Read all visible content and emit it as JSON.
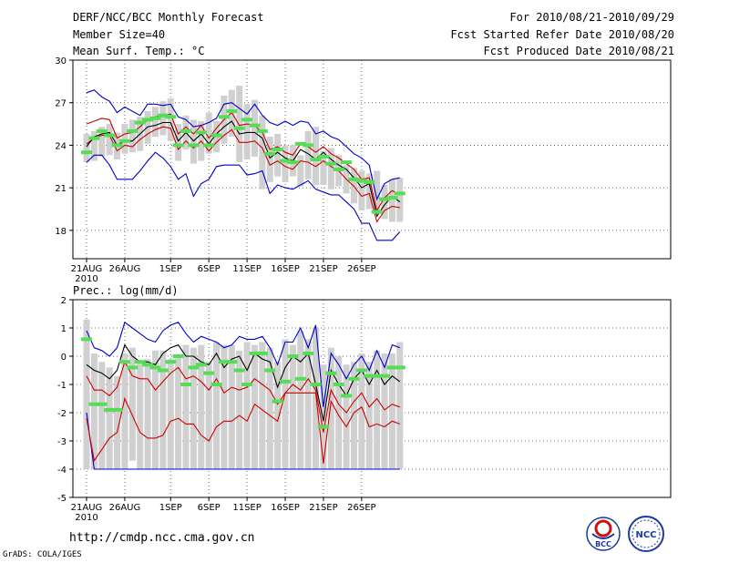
{
  "header": {
    "title": "DERF/NCC/BCC Monthly Forecast",
    "member_size": "Member Size=40",
    "variable": "Mean Surf. Temp.: °C",
    "period": "For 2010/08/21-2010/09/29",
    "started": "Fcst Started Refer Date 2010/08/20",
    "produced": "Fcst Produced Date 2010/08/21"
  },
  "footer": {
    "url": "http://cmdp.ncc.cma.gov.cn",
    "grads": "GrADS: COLA/IGES",
    "logo_bcc": "BCC",
    "logo_ncc": "NCC"
  },
  "colors": {
    "box": "#d0d0d0",
    "green": "#55dd55",
    "blue": "#0000cc",
    "red": "#cc0000",
    "black": "#000000",
    "grid": "#444444"
  },
  "chart_data": [
    {
      "type": "box",
      "title": "Mean Surf. Temp.: °C",
      "ylabel": "°C",
      "ylim": [
        16,
        30
      ],
      "yticks": [
        18,
        21,
        24,
        27,
        30
      ],
      "x_ticks": [
        {
          "day": 0,
          "label": "21AUG",
          "sub": "2010"
        },
        {
          "day": 5,
          "label": "26AUG"
        },
        {
          "day": 11,
          "label": "1SEP"
        },
        {
          "day": 16,
          "label": "6SEP"
        },
        {
          "day": 21,
          "label": "11SEP"
        },
        {
          "day": 26,
          "label": "16SEP"
        },
        {
          "day": 31,
          "label": "21SEP"
        },
        {
          "day": 36,
          "label": "26SEP"
        }
      ],
      "series": {
        "box_low": [
          22.8,
          22.9,
          23.2,
          23.3,
          23.0,
          23.4,
          23.5,
          23.6,
          24.1,
          24.6,
          24.7,
          24.3,
          22.9,
          23.7,
          22.7,
          22.9,
          23.4,
          23.5,
          24.1,
          24.6,
          22.8,
          23.0,
          23.2,
          20.9,
          21.4,
          21.8,
          21.4,
          21.8,
          21.1,
          21.6,
          21.2,
          21.2,
          20.9,
          21.1,
          20.6,
          19.9,
          19.4,
          19.5,
          19.3,
          18.8,
          18.6,
          18.6
        ],
        "box_high": [
          24.8,
          25.0,
          25.3,
          25.5,
          24.9,
          25.5,
          25.8,
          26.0,
          26.4,
          26.7,
          27.1,
          27.3,
          25.5,
          26.1,
          25.8,
          25.7,
          26.3,
          25.7,
          27.5,
          27.9,
          28.2,
          26.9,
          27.2,
          26.1,
          24.6,
          24.8,
          24.0,
          24.0,
          23.3,
          25.0,
          25.3,
          23.6,
          23.8,
          23.3,
          22.6,
          22.4,
          22.2,
          22.0,
          22.2,
          21.2,
          21.6,
          21.7
        ],
        "green": [
          23.5,
          24.5,
          25.0,
          24.7,
          24.0,
          24.3,
          25.0,
          25.6,
          25.8,
          25.9,
          26.1,
          26.0,
          24.0,
          25.0,
          24.0,
          24.9,
          24.0,
          24.7,
          26.0,
          26.4,
          25.2,
          25.8,
          25.4,
          25.0,
          23.4,
          23.7,
          22.9,
          22.8,
          24.1,
          24.0,
          23.0,
          23.2,
          22.7,
          22.3,
          22.8,
          21.6,
          21.5,
          21.4,
          19.3,
          20.2,
          20.3,
          20.6
        ],
        "mean": [
          23.9,
          24.6,
          24.8,
          24.9,
          24.0,
          24.3,
          24.3,
          24.8,
          25.3,
          25.4,
          25.6,
          25.6,
          24.3,
          24.9,
          24.3,
          24.8,
          24.1,
          24.8,
          25.3,
          25.7,
          24.8,
          24.9,
          24.9,
          24.5,
          23.1,
          23.5,
          23.1,
          22.9,
          23.7,
          23.4,
          23.0,
          23.5,
          23.0,
          22.6,
          22.3,
          21.7,
          21.0,
          21.3,
          19.0,
          19.8,
          20.4,
          20.0
        ],
        "red_upper": [
          25.5,
          25.7,
          25.9,
          25.8,
          24.5,
          24.8,
          24.9,
          25.3,
          25.8,
          26.0,
          26.1,
          26.2,
          24.8,
          25.3,
          24.8,
          25.4,
          24.5,
          25.2,
          25.8,
          26.3,
          25.4,
          25.5,
          25.4,
          24.9,
          23.7,
          23.9,
          23.5,
          23.3,
          24.1,
          23.9,
          23.5,
          23.9,
          23.4,
          23.1,
          22.7,
          22.3,
          21.6,
          21.7,
          19.4,
          20.3,
          20.8,
          20.5
        ],
        "red_lower": [
          24.1,
          24.5,
          24.7,
          24.7,
          23.6,
          24.0,
          23.9,
          24.4,
          24.8,
          25.1,
          25.3,
          25.2,
          23.7,
          24.3,
          23.8,
          24.3,
          23.6,
          24.2,
          24.7,
          25.1,
          24.2,
          24.2,
          24.3,
          23.8,
          22.6,
          22.9,
          22.5,
          22.3,
          22.9,
          22.8,
          22.5,
          22.9,
          22.5,
          22.2,
          21.6,
          21.1,
          20.4,
          20.6,
          18.6,
          19.4,
          19.7,
          19.6
        ],
        "blue_upper": [
          27.7,
          27.9,
          27.4,
          27.1,
          26.3,
          26.7,
          26.4,
          26.1,
          26.9,
          26.9,
          26.8,
          26.9,
          26.0,
          25.8,
          25.3,
          25.4,
          25.6,
          25.9,
          26.9,
          27.0,
          26.6,
          26.2,
          26.9,
          26.1,
          25.6,
          25.4,
          25.7,
          25.4,
          25.7,
          25.6,
          24.8,
          25.0,
          24.6,
          24.4,
          23.9,
          23.4,
          23.1,
          22.6,
          20.2,
          21.3,
          21.6,
          21.7
        ],
        "blue_lower": [
          22.8,
          23.3,
          23.3,
          22.6,
          21.6,
          21.6,
          21.6,
          22.2,
          22.9,
          23.5,
          23.1,
          22.5,
          21.6,
          22.0,
          20.4,
          21.3,
          21.6,
          22.5,
          22.6,
          22.6,
          22.6,
          21.9,
          22.0,
          22.2,
          20.6,
          21.2,
          21.0,
          20.9,
          21.2,
          21.5,
          20.9,
          20.7,
          20.5,
          20.5,
          20.0,
          19.5,
          18.5,
          18.5,
          17.3,
          17.3,
          17.3,
          17.9
        ]
      }
    },
    {
      "type": "box",
      "title": "Prec.: log(mm/d)",
      "ylabel": "log(mm/d)",
      "ylim": [
        -5,
        2
      ],
      "yticks": [
        -5,
        -4,
        -3,
        -2,
        -1,
        0,
        1,
        2
      ],
      "x_ticks": [
        {
          "day": 0,
          "label": "21AUG",
          "sub": "2010"
        },
        {
          "day": 5,
          "label": "26AUG"
        },
        {
          "day": 11,
          "label": "1SEP"
        },
        {
          "day": 16,
          "label": "6SEP"
        },
        {
          "day": 21,
          "label": "11SEP"
        },
        {
          "day": 26,
          "label": "16SEP"
        },
        {
          "day": 31,
          "label": "21SEP"
        },
        {
          "day": 36,
          "label": "26SEP"
        }
      ],
      "series": {
        "box_low": [
          -4.0,
          -4.0,
          -4.0,
          -4.0,
          -4.0,
          -4.0,
          -3.7,
          -4.0,
          -4.0,
          -4.0,
          -4.0,
          -4.0,
          -4.0,
          -4.0,
          -4.0,
          -4.0,
          -4.0,
          -4.0,
          -4.0,
          -4.0,
          -4.0,
          -4.0,
          -4.0,
          -4.0,
          -4.0,
          -4.0,
          -4.0,
          -4.0,
          -4.0,
          -4.0,
          -4.0,
          -4.0,
          -4.0,
          -4.0,
          -4.0,
          -4.0,
          -4.0,
          -4.0,
          -4.0,
          -4.0,
          -4.0,
          -4.0
        ],
        "box_high": [
          1.3,
          0.1,
          -0.2,
          -0.4,
          -0.7,
          0.1,
          0.3,
          -0.2,
          -0.1,
          0.2,
          0.2,
          -0.1,
          0.0,
          0.4,
          0.3,
          0.4,
          -0.2,
          0.5,
          0.4,
          0.4,
          0.2,
          0.5,
          0.4,
          0.5,
          0.3,
          -0.2,
          0.6,
          0.4,
          0.9,
          0.6,
          1.0,
          -0.3,
          0.3,
          0.0,
          -0.3,
          -0.2,
          0.1,
          -0.2,
          0.2,
          0.1,
          0.1,
          0.5
        ],
        "green": [
          0.6,
          -1.7,
          -1.7,
          -1.9,
          -1.9,
          -0.2,
          -0.4,
          -0.2,
          -0.3,
          -0.4,
          -0.5,
          -0.2,
          0.0,
          -1.0,
          -0.4,
          -0.3,
          -0.6,
          -1.0,
          -0.2,
          -0.2,
          -0.5,
          -1.0,
          0.1,
          0.1,
          -0.5,
          -1.6,
          -0.9,
          0.0,
          -0.8,
          0.1,
          -1.0,
          -2.5,
          -0.6,
          -1.0,
          -1.4,
          -0.8,
          -0.5,
          -0.7,
          -0.7,
          -0.7,
          -0.4,
          -0.4
        ],
        "mean": [
          -0.3,
          -0.5,
          -0.6,
          -0.8,
          -0.5,
          0.4,
          0.0,
          -0.2,
          -0.2,
          -0.3,
          0.1,
          0.3,
          0.4,
          0.0,
          0.0,
          -0.2,
          -0.3,
          0.1,
          -0.4,
          -0.1,
          0.0,
          -0.5,
          0.1,
          -0.1,
          -0.2,
          -1.1,
          -0.4,
          0.0,
          -0.2,
          0.1,
          -1.0,
          -2.3,
          -0.5,
          -1.0,
          -1.4,
          -0.8,
          -0.5,
          -1.0,
          -0.5,
          -1.0,
          -0.7,
          -0.9
        ],
        "red_upper": [
          -0.7,
          -1.2,
          -1.2,
          -1.4,
          -1.1,
          -0.2,
          -0.7,
          -0.8,
          -0.8,
          -1.2,
          -0.9,
          -0.6,
          -0.4,
          -0.8,
          -0.7,
          -0.9,
          -1.2,
          -0.8,
          -1.3,
          -1.1,
          -1.2,
          -1.1,
          -0.8,
          -1.0,
          -1.2,
          -1.7,
          -1.3,
          -1.0,
          -1.2,
          -0.8,
          -1.2,
          -2.7,
          -1.2,
          -1.7,
          -2.0,
          -1.6,
          -1.3,
          -1.8,
          -1.5,
          -1.9,
          -1.7,
          -1.8
        ],
        "red_lower": [
          -2.2,
          -3.7,
          -3.3,
          -2.9,
          -2.7,
          -1.5,
          -2.1,
          -2.7,
          -2.9,
          -2.9,
          -2.8,
          -2.3,
          -2.2,
          -2.4,
          -2.4,
          -2.8,
          -3.0,
          -2.5,
          -2.3,
          -2.3,
          -2.1,
          -2.3,
          -1.7,
          -1.9,
          -2.1,
          -2.3,
          -1.3,
          -1.3,
          -1.3,
          -1.3,
          -1.3,
          -3.8,
          -1.6,
          -2.1,
          -2.5,
          -2.0,
          -1.8,
          -2.5,
          -2.4,
          -2.5,
          -2.3,
          -2.4
        ],
        "blue_upper": [
          0.9,
          0.3,
          0.2,
          0.0,
          0.3,
          1.2,
          1.0,
          0.8,
          0.6,
          0.5,
          0.9,
          1.1,
          1.2,
          0.8,
          0.5,
          0.7,
          0.6,
          0.5,
          0.3,
          0.4,
          0.7,
          0.6,
          0.6,
          0.7,
          0.3,
          -0.3,
          0.5,
          0.5,
          1.0,
          0.3,
          1.1,
          -1.8,
          0.1,
          -0.3,
          -0.8,
          -0.3,
          0.0,
          -0.5,
          0.2,
          -0.4,
          0.4,
          0.3
        ],
        "blue_lower": [
          -2.0,
          -4.0,
          -4.0,
          -4.0,
          -4.0,
          -4.0,
          -4.0,
          -4.0,
          -4.0,
          -4.0,
          -4.0,
          -4.0,
          -4.0,
          -4.0,
          -4.0,
          -4.0,
          -4.0,
          -4.0,
          -4.0,
          -4.0,
          -4.0,
          -4.0,
          -4.0,
          -4.0,
          -4.0,
          -4.0,
          -4.0,
          -4.0,
          -4.0,
          -4.0,
          -4.0,
          -4.0,
          -4.0,
          -4.0,
          -4.0,
          -4.0,
          -4.0,
          -4.0,
          -4.0,
          -4.0,
          -4.0,
          -4.0
        ]
      }
    }
  ]
}
